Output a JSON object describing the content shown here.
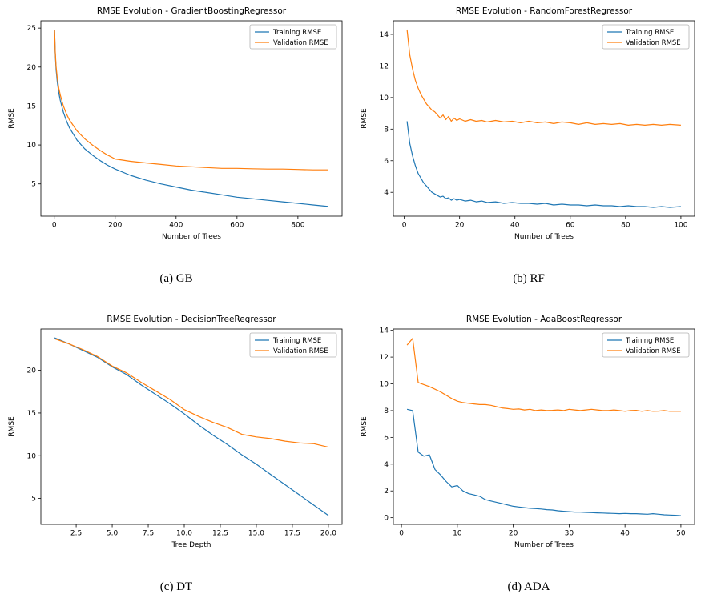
{
  "legend": {
    "training_label": "Training RMSE",
    "validation_label": "Validation RMSE"
  },
  "colors": {
    "training": "#1f77b4",
    "validation": "#ff7f0e",
    "legend_border": "#b3b3b3",
    "spine": "#000000"
  },
  "chart_data": [
    {
      "type": "line",
      "title": "RMSE Evolution - GradientBoostingRegressor",
      "caption": "(a) GB",
      "xlabel": "Number of Trees",
      "ylabel": "RMSE",
      "xlim": [
        -44,
        945
      ],
      "ylim": [
        0.86,
        25.94
      ],
      "xticks": [
        0,
        200,
        400,
        600,
        800
      ],
      "xtick_labels": [
        "0",
        "200",
        "400",
        "600",
        "800"
      ],
      "yticks": [
        5,
        10,
        15,
        20,
        25
      ],
      "ytick_labels": [
        "5",
        "10",
        "15",
        "20",
        "25"
      ],
      "legend_position": "top-right",
      "series": [
        {
          "name": "Training RMSE",
          "color": "#1f77b4",
          "x": [
            1,
            3,
            6,
            10,
            15,
            20,
            30,
            40,
            50,
            75,
            100,
            125,
            150,
            175,
            200,
            250,
            300,
            350,
            400,
            450,
            500,
            550,
            600,
            650,
            700,
            750,
            800,
            850,
            900
          ],
          "y": [
            24.8,
            21.9,
            19.7,
            18.1,
            16.7,
            15.7,
            14.2,
            13.1,
            12.2,
            10.6,
            9.5,
            8.7,
            8.0,
            7.4,
            6.9,
            6.1,
            5.5,
            5.0,
            4.6,
            4.2,
            3.9,
            3.6,
            3.3,
            3.1,
            2.9,
            2.7,
            2.5,
            2.3,
            2.1
          ]
        },
        {
          "name": "Validation RMSE",
          "color": "#ff7f0e",
          "x": [
            1,
            3,
            6,
            10,
            15,
            20,
            30,
            40,
            50,
            75,
            100,
            125,
            150,
            175,
            200,
            250,
            300,
            350,
            400,
            450,
            500,
            550,
            600,
            650,
            700,
            750,
            800,
            850,
            900
          ],
          "y": [
            24.8,
            22.1,
            20.1,
            18.6,
            17.3,
            16.4,
            15.0,
            14.0,
            13.2,
            11.8,
            10.8,
            10.0,
            9.3,
            8.7,
            8.2,
            7.9,
            7.7,
            7.5,
            7.3,
            7.2,
            7.1,
            7.0,
            7.0,
            6.95,
            6.9,
            6.9,
            6.85,
            6.8,
            6.8
          ]
        }
      ]
    },
    {
      "type": "line",
      "title": "RMSE Evolution - RandomForestRegressor",
      "caption": "(b) RF",
      "xlabel": "Number of Trees",
      "ylabel": "RMSE",
      "xlim": [
        -3.95,
        104.95
      ],
      "ylim": [
        2.49,
        14.86
      ],
      "xticks": [
        0,
        20,
        40,
        60,
        80,
        100
      ],
      "xtick_labels": [
        "0",
        "20",
        "40",
        "60",
        "80",
        "100"
      ],
      "yticks": [
        4,
        6,
        8,
        10,
        12,
        14
      ],
      "ytick_labels": [
        "4",
        "6",
        "8",
        "10",
        "12",
        "14"
      ],
      "legend_position": "top-right",
      "series": [
        {
          "name": "Training RMSE",
          "color": "#1f77b4",
          "x": [
            1,
            2,
            3,
            4,
            5,
            6,
            7,
            8,
            9,
            10,
            11,
            12,
            13,
            14,
            15,
            16,
            17,
            18,
            19,
            20,
            22,
            24,
            26,
            28,
            30,
            33,
            36,
            39,
            42,
            45,
            48,
            51,
            54,
            57,
            60,
            63,
            66,
            69,
            72,
            75,
            78,
            81,
            84,
            87,
            90,
            93,
            96,
            100
          ],
          "y": [
            8.5,
            7.1,
            6.3,
            5.7,
            5.2,
            4.9,
            4.6,
            4.4,
            4.2,
            4.0,
            3.9,
            3.8,
            3.7,
            3.75,
            3.6,
            3.65,
            3.5,
            3.6,
            3.5,
            3.55,
            3.45,
            3.5,
            3.4,
            3.45,
            3.35,
            3.4,
            3.3,
            3.35,
            3.3,
            3.3,
            3.25,
            3.3,
            3.2,
            3.25,
            3.2,
            3.2,
            3.15,
            3.2,
            3.15,
            3.15,
            3.1,
            3.15,
            3.1,
            3.1,
            3.05,
            3.1,
            3.05,
            3.1
          ]
        },
        {
          "name": "Validation RMSE",
          "color": "#ff7f0e",
          "x": [
            1,
            2,
            3,
            4,
            5,
            6,
            7,
            8,
            9,
            10,
            11,
            12,
            13,
            14,
            15,
            16,
            17,
            18,
            19,
            20,
            22,
            24,
            26,
            28,
            30,
            33,
            36,
            39,
            42,
            45,
            48,
            51,
            54,
            57,
            60,
            63,
            66,
            69,
            72,
            75,
            78,
            81,
            84,
            87,
            90,
            93,
            96,
            100
          ],
          "y": [
            14.3,
            12.7,
            11.8,
            11.1,
            10.6,
            10.2,
            9.9,
            9.6,
            9.4,
            9.2,
            9.1,
            8.9,
            8.7,
            8.9,
            8.6,
            8.8,
            8.5,
            8.7,
            8.55,
            8.65,
            8.5,
            8.6,
            8.5,
            8.55,
            8.45,
            8.55,
            8.45,
            8.5,
            8.4,
            8.5,
            8.4,
            8.45,
            8.35,
            8.45,
            8.4,
            8.3,
            8.4,
            8.3,
            8.35,
            8.3,
            8.35,
            8.25,
            8.3,
            8.25,
            8.3,
            8.25,
            8.3,
            8.25
          ]
        }
      ]
    },
    {
      "type": "line",
      "title": "RMSE Evolution - DecisionTreeRegressor",
      "caption": "(c) DT",
      "xlabel": "Tree Depth",
      "ylabel": "RMSE",
      "xlim": [
        0.05,
        20.95
      ],
      "ylim": [
        1.96,
        24.84
      ],
      "xticks": [
        2.5,
        5.0,
        7.5,
        10.0,
        12.5,
        15.0,
        17.5,
        20.0
      ],
      "xtick_labels": [
        "2.5",
        "5.0",
        "7.5",
        "10.0",
        "12.5",
        "15.0",
        "17.5",
        "20.0"
      ],
      "yticks": [
        5,
        10,
        15,
        20
      ],
      "ytick_labels": [
        "5",
        "10",
        "15",
        "20"
      ],
      "legend_position": "top-right",
      "series": [
        {
          "name": "Training RMSE",
          "color": "#1f77b4",
          "x": [
            1,
            2,
            3,
            4,
            5,
            6,
            7,
            8,
            9,
            10,
            11,
            12,
            13,
            14,
            15,
            16,
            17,
            18,
            19,
            20
          ],
          "y": [
            23.8,
            23.1,
            22.3,
            21.5,
            20.4,
            19.5,
            18.3,
            17.2,
            16.1,
            14.9,
            13.6,
            12.4,
            11.3,
            10.1,
            9.0,
            7.8,
            6.6,
            5.4,
            4.2,
            3.0
          ]
        },
        {
          "name": "Validation RMSE",
          "color": "#ff7f0e",
          "x": [
            1,
            2,
            3,
            4,
            5,
            6,
            7,
            8,
            9,
            10,
            11,
            12,
            13,
            14,
            15,
            16,
            17,
            18,
            19,
            20
          ],
          "y": [
            23.7,
            23.1,
            22.4,
            21.6,
            20.5,
            19.7,
            18.6,
            17.6,
            16.6,
            15.4,
            14.6,
            13.9,
            13.3,
            12.5,
            12.2,
            12.0,
            11.7,
            11.5,
            11.4,
            11.0
          ]
        }
      ]
    },
    {
      "type": "line",
      "title": "RMSE Evolution - AdaBoostRegressor",
      "caption": "(d) ADA",
      "xlabel": "Number of Trees",
      "ylabel": "RMSE",
      "xlim": [
        -1.45,
        52.45
      ],
      "ylim": [
        -0.5,
        14.1
      ],
      "xticks": [
        0,
        10,
        20,
        30,
        40,
        50
      ],
      "xtick_labels": [
        "0",
        "10",
        "20",
        "30",
        "40",
        "50"
      ],
      "yticks": [
        0,
        2,
        4,
        6,
        8,
        10,
        12,
        14
      ],
      "ytick_labels": [
        "0",
        "2",
        "4",
        "6",
        "8",
        "10",
        "12",
        "14"
      ],
      "legend_position": "top-right",
      "series": [
        {
          "name": "Training RMSE",
          "color": "#1f77b4",
          "x": [
            1,
            2,
            3,
            4,
            5,
            6,
            7,
            8,
            9,
            10,
            11,
            12,
            13,
            14,
            15,
            16,
            17,
            18,
            19,
            20,
            21,
            22,
            23,
            24,
            25,
            26,
            27,
            28,
            29,
            30,
            31,
            32,
            33,
            34,
            35,
            36,
            37,
            38,
            39,
            40,
            41,
            42,
            43,
            44,
            45,
            46,
            47,
            48,
            49,
            50
          ],
          "y": [
            8.1,
            8.0,
            4.9,
            4.6,
            4.7,
            3.6,
            3.2,
            2.7,
            2.3,
            2.4,
            2.0,
            1.8,
            1.7,
            1.6,
            1.35,
            1.25,
            1.15,
            1.05,
            0.95,
            0.85,
            0.8,
            0.75,
            0.7,
            0.68,
            0.65,
            0.6,
            0.58,
            0.52,
            0.48,
            0.45,
            0.42,
            0.42,
            0.4,
            0.38,
            0.36,
            0.35,
            0.33,
            0.32,
            0.3,
            0.32,
            0.3,
            0.3,
            0.28,
            0.26,
            0.3,
            0.26,
            0.22,
            0.2,
            0.18,
            0.15
          ]
        },
        {
          "name": "Validation RMSE",
          "color": "#ff7f0e",
          "x": [
            1,
            2,
            3,
            4,
            5,
            6,
            7,
            8,
            9,
            10,
            11,
            12,
            13,
            14,
            15,
            16,
            17,
            18,
            19,
            20,
            21,
            22,
            23,
            24,
            25,
            26,
            27,
            28,
            29,
            30,
            31,
            32,
            33,
            34,
            35,
            36,
            37,
            38,
            39,
            40,
            41,
            42,
            43,
            44,
            45,
            46,
            47,
            48,
            49,
            50
          ],
          "y": [
            12.9,
            13.4,
            10.1,
            9.95,
            9.8,
            9.6,
            9.4,
            9.15,
            8.9,
            8.7,
            8.6,
            8.55,
            8.5,
            8.45,
            8.45,
            8.4,
            8.3,
            8.2,
            8.15,
            8.1,
            8.12,
            8.05,
            8.1,
            8.0,
            8.05,
            8.0,
            8.02,
            8.05,
            8.0,
            8.1,
            8.05,
            8.0,
            8.05,
            8.1,
            8.05,
            8.0,
            8.0,
            8.05,
            8.0,
            7.95,
            8.0,
            8.02,
            7.95,
            8.0,
            7.95,
            7.96,
            8.0,
            7.95,
            7.96,
            7.95
          ]
        }
      ]
    }
  ]
}
